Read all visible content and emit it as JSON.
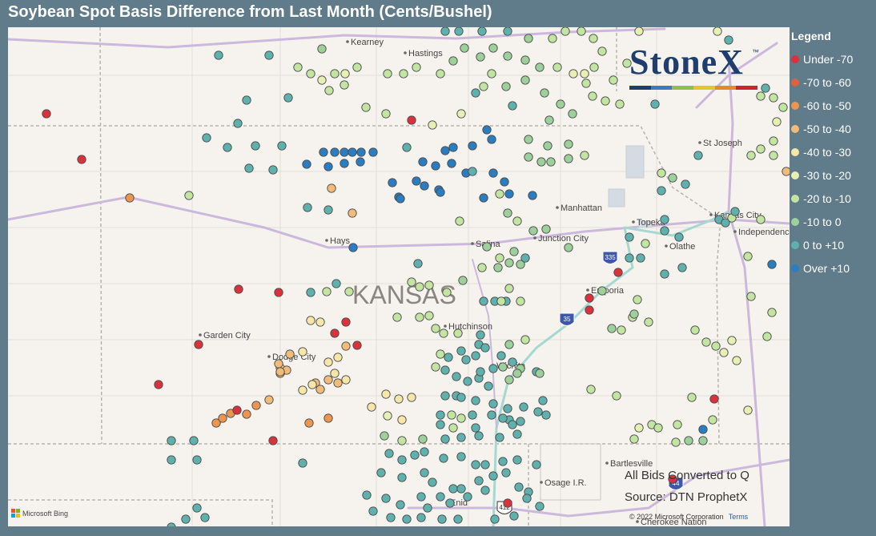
{
  "title": "Soybean Spot Basis Difference from Last Month (Cents/Bushel)",
  "legend": {
    "title": "Legend",
    "items": [
      {
        "label": "Under -70",
        "color": "#d9323d"
      },
      {
        "label": "-70 to -60",
        "color": "#e0613f"
      },
      {
        "label": "-60 to -50",
        "color": "#ec9551"
      },
      {
        "label": "-50 to -40",
        "color": "#f1bb79"
      },
      {
        "label": "-40 to -30",
        "color": "#f6e6a8"
      },
      {
        "label": "-30 to -20",
        "color": "#e6efb4"
      },
      {
        "label": "-20 to -10",
        "color": "#c3e5a2"
      },
      {
        "label": "-10 to 0",
        "color": "#9dd09a"
      },
      {
        "label": "0 to +10",
        "color": "#5fb1ae"
      },
      {
        "label": "Over +10",
        "color": "#2a7dc0"
      }
    ]
  },
  "map": {
    "state_label": "KANSAS",
    "cities": [
      "Kearney",
      "Hastings",
      "St Joseph",
      "Manhattan",
      "Topeka",
      "Kansas City",
      "Independence",
      "Olathe",
      "Hays",
      "Salina",
      "Junction City",
      "Emporia",
      "Garden City",
      "Dodge City",
      "Hutchinson",
      "Wichita",
      "Bartlesville",
      "Osage I.R.",
      "Enid",
      "Cherokee Nation"
    ],
    "highways": [
      "335",
      "35",
      "44",
      "412"
    ]
  },
  "brand": {
    "name": "StoneX",
    "tm": "™",
    "stripe_colors": [
      "#1f3e6e",
      "#3c7bbd",
      "#8bbf4f",
      "#e6c42f",
      "#e58a2b",
      "#c8262f"
    ]
  },
  "notes": {
    "line1": "All Bids Converted to Q",
    "line2": "Source: DTN ProphetX"
  },
  "copyright": {
    "text": "© 2022 Microsoft Corporation",
    "terms": "Terms"
  },
  "bing": {
    "label": "Microsoft Bing"
  }
}
